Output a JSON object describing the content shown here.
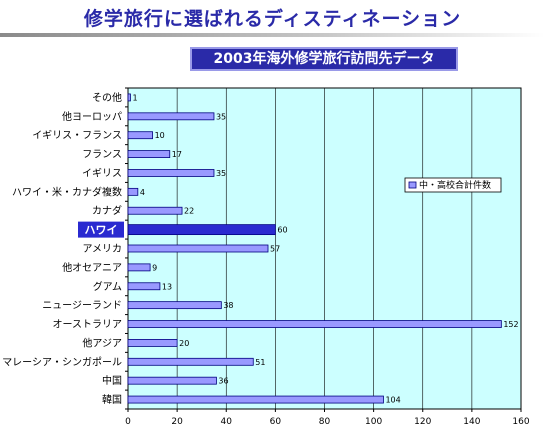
{
  "header": {
    "title": "修学旅行に選ばれるディスティネーション"
  },
  "chart_data": {
    "type": "bar",
    "orientation": "horizontal",
    "title": "2003年海外修学旅行訪問先データ",
    "categories": [
      "その他",
      "他ヨーロッパ",
      "イギリス・フランス",
      "フランス",
      "イギリス",
      "ハワイ・米・カナダ複数",
      "カナダ",
      "ハワイ",
      "アメリカ",
      "他オセアニア",
      "グアム",
      "ニュージーランド",
      "オーストラリア",
      "他アジア",
      "マレーシア・シンガポール",
      "中国",
      "韓国"
    ],
    "series": [
      {
        "name": "中・高校合計件数",
        "values": [
          1,
          35,
          10,
          17,
          35,
          4,
          22,
          60,
          57,
          9,
          13,
          38,
          152,
          20,
          51,
          36,
          104
        ]
      }
    ],
    "highlight_category": "ハワイ",
    "xlim": [
      0,
      160
    ],
    "xticks": [
      0,
      20,
      40,
      60,
      80,
      100,
      120,
      140,
      160
    ],
    "grid": true,
    "legend_position": "right",
    "colors": {
      "plot_background": "#ccffff",
      "bar_fill": "#9999ff",
      "bar_highlight": "#2a2ad0",
      "bar_border": "#000080",
      "title_color": "#2a2aa8"
    }
  }
}
